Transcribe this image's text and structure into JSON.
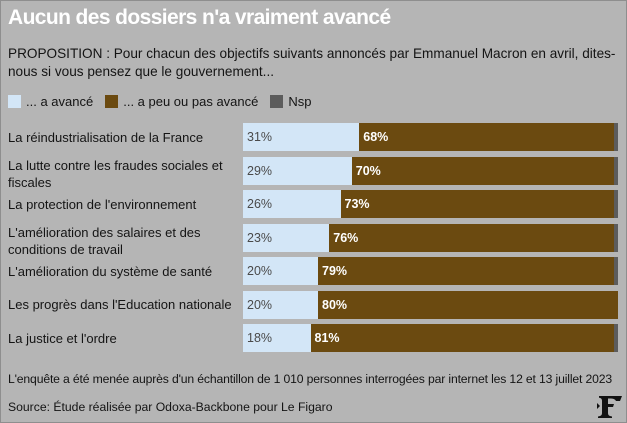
{
  "colors": {
    "background": "#b5b5b5",
    "title": "#ffffff",
    "text": "#141414",
    "advanced": "#d3e6f7",
    "not_advanced": "#6b4a10",
    "nsp": "#5c5c5c"
  },
  "header": {
    "title": "Aucun des dossiers n'a vraiment avancé",
    "subtitle": "PROPOSITION : Pour chacun des objectifs suivants annoncés par Emmanuel Macron en avril, dites-nous si vous pensez que le gouvernement..."
  },
  "legend": [
    {
      "label": "... a avancé",
      "color": "#d3e6f7"
    },
    {
      "label": "... a peu ou pas avancé",
      "color": "#6b4a10"
    },
    {
      "label": "Nsp",
      "color": "#5c5c5c"
    }
  ],
  "chart_data": {
    "type": "bar",
    "orientation": "horizontal",
    "stacked": true,
    "xlim": [
      0,
      100
    ],
    "unit": "%",
    "categories": [
      "La réindustrialisation de la France",
      "La lutte contre les fraudes sociales et fiscales",
      "La protection de l'environnement",
      "L'amélioration des salaires et des conditions de travail",
      "L'amélioration du système de santé",
      "Les progrès dans l'Education nationale",
      "La justice et l'ordre"
    ],
    "series": [
      {
        "name": "... a avancé",
        "values": [
          31,
          29,
          26,
          23,
          20,
          20,
          18
        ]
      },
      {
        "name": "... a peu ou pas avancé",
        "values": [
          68,
          70,
          73,
          76,
          79,
          80,
          81
        ]
      },
      {
        "name": "Nsp",
        "values": [
          1,
          1,
          1,
          1,
          1,
          0,
          1
        ]
      }
    ],
    "value_labels": [
      [
        "31%",
        "68%"
      ],
      [
        "29%",
        "70%"
      ],
      [
        "26%",
        "73%"
      ],
      [
        "23%",
        "76%"
      ],
      [
        "20%",
        "79%"
      ],
      [
        "20%",
        "80%"
      ],
      [
        "18%",
        "81%"
      ]
    ]
  },
  "footer": {
    "note": "L'enquête a été menée auprès d'un échantillon de 1 010 personnes interrogées par internet les 12 et 13 juillet 2023",
    "source": "Source: Étude réalisée par Odoxa-Backbone pour Le Figaro",
    "logo_icon": "le-figaro-logo-icon"
  }
}
